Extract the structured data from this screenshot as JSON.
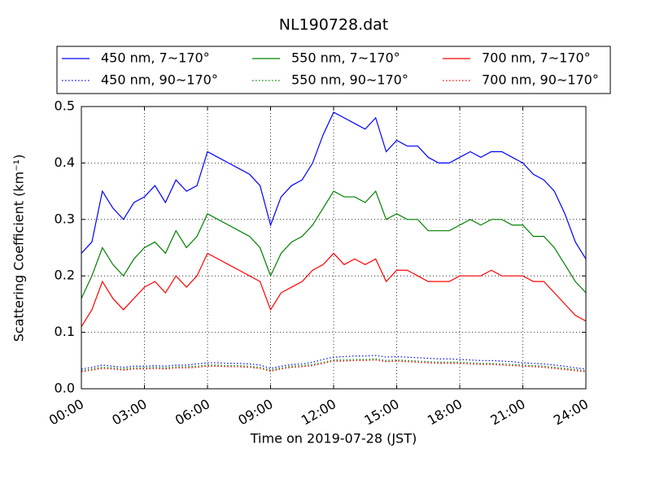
{
  "chart_data": {
    "type": "line",
    "title": "NL190728.dat",
    "xlabel": "Time on 2019-07-28 (JST)",
    "ylabel": "Scattering Coefficient (km⁻¹)",
    "x": [
      0,
      0.5,
      1,
      1.5,
      2,
      2.5,
      3,
      3.5,
      4,
      4.5,
      5,
      5.5,
      6,
      6.5,
      7,
      7.5,
      8,
      8.5,
      9,
      9.5,
      10,
      10.5,
      11,
      11.5,
      12,
      12.5,
      13,
      13.5,
      14,
      14.5,
      15,
      15.5,
      16,
      16.5,
      17,
      17.5,
      18,
      18.5,
      19,
      19.5,
      20,
      20.5,
      21,
      21.5,
      22,
      22.5,
      23,
      23.5,
      24
    ],
    "xlim": [
      0,
      24
    ],
    "xticks": [
      {
        "value": 0,
        "label": "00:00"
      },
      {
        "value": 3,
        "label": "03:00"
      },
      {
        "value": 6,
        "label": "06:00"
      },
      {
        "value": 9,
        "label": "09:00"
      },
      {
        "value": 12,
        "label": "12:00"
      },
      {
        "value": 15,
        "label": "15:00"
      },
      {
        "value": 18,
        "label": "18:00"
      },
      {
        "value": 21,
        "label": "21:00"
      },
      {
        "value": 24,
        "label": "24:00"
      }
    ],
    "ylim": [
      0,
      0.5
    ],
    "yticks": [
      {
        "value": 0,
        "label": "0.0"
      },
      0.1,
      0.2,
      0.3,
      0.4,
      0.5
    ],
    "grid": true,
    "legend": "top",
    "series": [
      {
        "name": "450 nm, 7∼170°",
        "color": "#0000ff",
        "dash": "solid",
        "values": [
          0.24,
          0.26,
          0.35,
          0.32,
          0.3,
          0.33,
          0.34,
          0.36,
          0.33,
          0.37,
          0.35,
          0.36,
          0.42,
          0.41,
          0.4,
          0.39,
          0.38,
          0.36,
          0.29,
          0.34,
          0.36,
          0.37,
          0.4,
          0.45,
          0.49,
          0.48,
          0.47,
          0.46,
          0.48,
          0.42,
          0.44,
          0.43,
          0.43,
          0.41,
          0.4,
          0.4,
          0.41,
          0.42,
          0.41,
          0.42,
          0.42,
          0.41,
          0.4,
          0.38,
          0.37,
          0.35,
          0.31,
          0.26,
          0.23
        ]
      },
      {
        "name": "450 nm, 90∼170°",
        "color": "#0000ff",
        "dash": "dotted",
        "values": [
          0.035,
          0.038,
          0.042,
          0.04,
          0.038,
          0.04,
          0.04,
          0.041,
          0.04,
          0.042,
          0.042,
          0.044,
          0.046,
          0.046,
          0.045,
          0.045,
          0.044,
          0.042,
          0.036,
          0.04,
          0.043,
          0.044,
          0.047,
          0.052,
          0.056,
          0.057,
          0.058,
          0.058,
          0.059,
          0.056,
          0.057,
          0.056,
          0.055,
          0.054,
          0.053,
          0.053,
          0.052,
          0.051,
          0.05,
          0.05,
          0.049,
          0.048,
          0.046,
          0.045,
          0.044,
          0.042,
          0.04,
          0.037,
          0.035
        ]
      },
      {
        "name": "550 nm, 7∼170°",
        "color": "#008000",
        "dash": "solid",
        "values": [
          0.16,
          0.2,
          0.25,
          0.22,
          0.2,
          0.23,
          0.25,
          0.26,
          0.24,
          0.28,
          0.25,
          0.27,
          0.31,
          0.3,
          0.29,
          0.28,
          0.27,
          0.25,
          0.2,
          0.24,
          0.26,
          0.27,
          0.29,
          0.32,
          0.35,
          0.34,
          0.34,
          0.33,
          0.35,
          0.3,
          0.31,
          0.3,
          0.3,
          0.28,
          0.28,
          0.28,
          0.29,
          0.3,
          0.29,
          0.3,
          0.3,
          0.29,
          0.29,
          0.27,
          0.27,
          0.25,
          0.22,
          0.19,
          0.17
        ]
      },
      {
        "name": "550 nm, 90∼170°",
        "color": "#008000",
        "dash": "dotted",
        "values": [
          0.032,
          0.035,
          0.038,
          0.037,
          0.035,
          0.037,
          0.037,
          0.038,
          0.037,
          0.039,
          0.039,
          0.04,
          0.042,
          0.042,
          0.041,
          0.041,
          0.04,
          0.038,
          0.033,
          0.037,
          0.04,
          0.041,
          0.043,
          0.047,
          0.051,
          0.051,
          0.052,
          0.052,
          0.053,
          0.05,
          0.051,
          0.05,
          0.049,
          0.048,
          0.047,
          0.047,
          0.047,
          0.046,
          0.045,
          0.045,
          0.044,
          0.043,
          0.042,
          0.041,
          0.04,
          0.038,
          0.036,
          0.034,
          0.032
        ]
      },
      {
        "name": "700 nm, 7∼170°",
        "color": "#ff0000",
        "dash": "solid",
        "values": [
          0.11,
          0.14,
          0.19,
          0.16,
          0.14,
          0.16,
          0.18,
          0.19,
          0.17,
          0.2,
          0.18,
          0.2,
          0.24,
          0.23,
          0.22,
          0.21,
          0.2,
          0.19,
          0.14,
          0.17,
          0.18,
          0.19,
          0.21,
          0.22,
          0.24,
          0.22,
          0.23,
          0.22,
          0.23,
          0.19,
          0.21,
          0.21,
          0.2,
          0.19,
          0.19,
          0.19,
          0.2,
          0.2,
          0.2,
          0.21,
          0.2,
          0.2,
          0.2,
          0.19,
          0.19,
          0.17,
          0.15,
          0.13,
          0.12
        ]
      },
      {
        "name": "700 nm, 90∼170°",
        "color": "#ff0000",
        "dash": "dotted",
        "values": [
          0.03,
          0.033,
          0.036,
          0.035,
          0.033,
          0.035,
          0.035,
          0.036,
          0.035,
          0.037,
          0.037,
          0.038,
          0.04,
          0.04,
          0.039,
          0.039,
          0.038,
          0.036,
          0.031,
          0.035,
          0.038,
          0.039,
          0.041,
          0.045,
          0.049,
          0.049,
          0.05,
          0.05,
          0.051,
          0.048,
          0.049,
          0.048,
          0.047,
          0.046,
          0.045,
          0.045,
          0.045,
          0.044,
          0.043,
          0.043,
          0.042,
          0.041,
          0.04,
          0.039,
          0.038,
          0.036,
          0.034,
          0.032,
          0.03
        ]
      }
    ]
  }
}
